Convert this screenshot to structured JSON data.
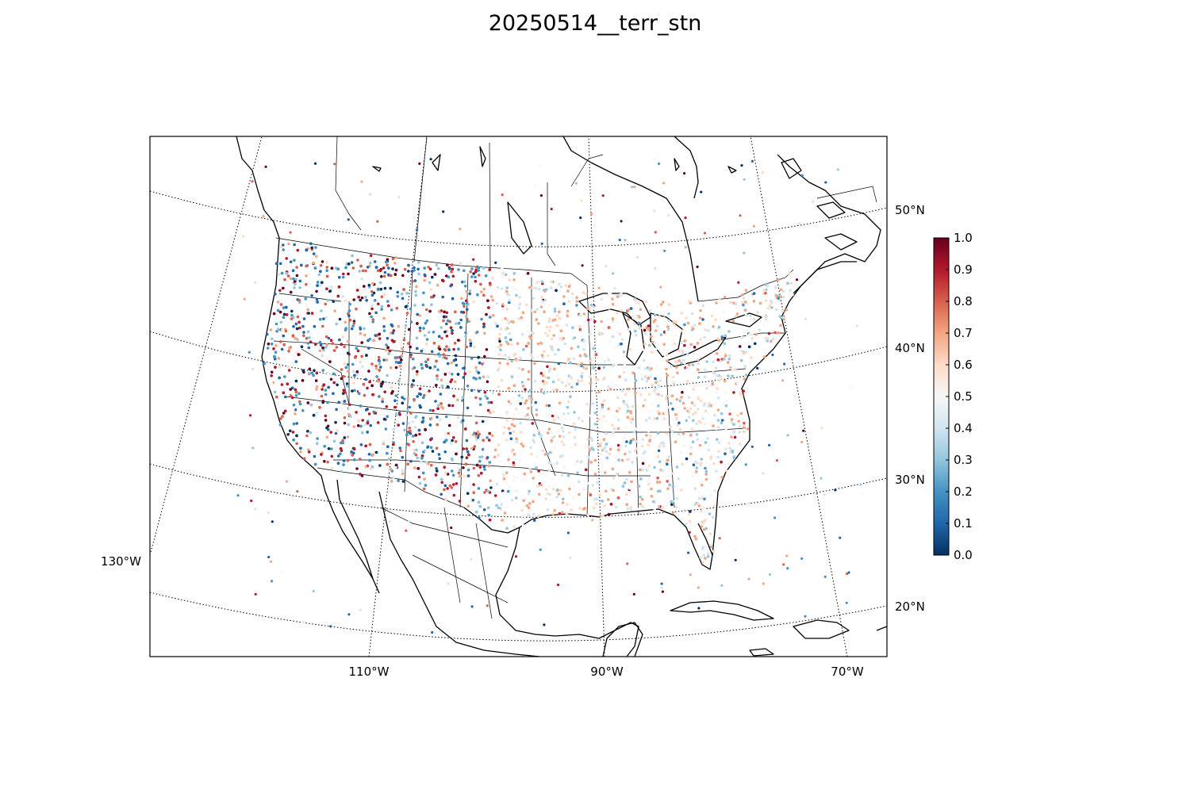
{
  "title": "20250514__terr_stn",
  "map": {
    "lat_labels": [
      "50°N",
      "40°N",
      "30°N",
      "20°N"
    ],
    "lon_labels": [
      "130°W",
      "110°W",
      "90°W",
      "70°W"
    ]
  },
  "colorbar": {
    "ticks": [
      "0.0",
      "0.1",
      "0.2",
      "0.3",
      "0.4",
      "0.5",
      "0.6",
      "0.7",
      "0.8",
      "0.9",
      "1.0"
    ],
    "colormap": [
      "#053061",
      "#2166ac",
      "#4393c3",
      "#92c5de",
      "#d1e5f0",
      "#f7f7f7",
      "#fddbc7",
      "#f4a582",
      "#d6604d",
      "#b2182b",
      "#67001f"
    ]
  }
}
